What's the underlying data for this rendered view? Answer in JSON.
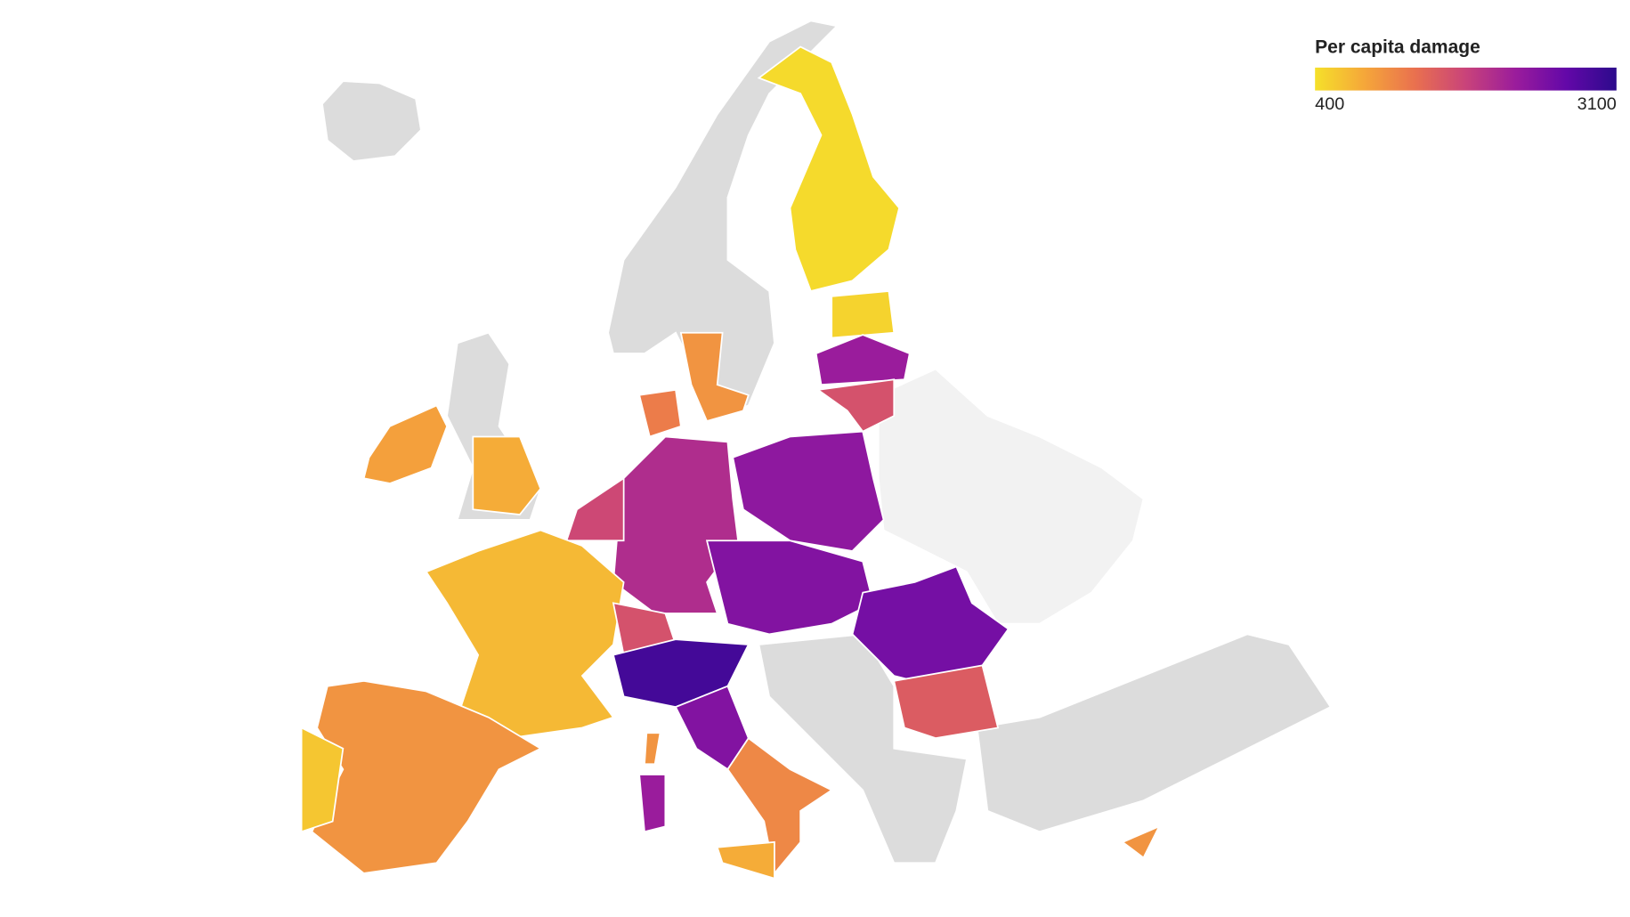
{
  "map": {
    "legend_title": "Per capita damage",
    "min": 400,
    "max": 3100,
    "colors": [
      "#f5e02a",
      "#f5a63a",
      "#e9704f",
      "#c9437a",
      "#9a1c9c",
      "#6308a8",
      "#2c0a8c"
    ],
    "regions": [
      1000,
      450,
      500,
      2200,
      1600,
      2300,
      2000,
      1200,
      1700,
      700,
      1000,
      600,
      800,
      900,
      2400,
      1600,
      2900,
      2400,
      1100,
      2200,
      800,
      1000,
      2500,
      1500,
      1000
    ]
  }
}
